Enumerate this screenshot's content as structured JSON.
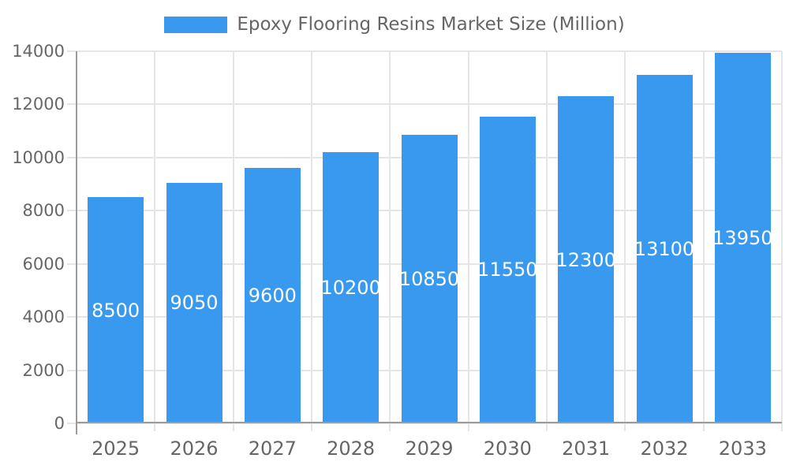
{
  "legend": {
    "label": "Epoxy Flooring Resins Market Size (Million)"
  },
  "colors": {
    "bar": "#3999EE",
    "grid": "#E5E5E5",
    "axis": "#9B9B9B",
    "tick_text": "#666666",
    "bar_label_text": "#FFFFFF",
    "background": "#FFFFFF"
  },
  "chart_data": {
    "type": "bar",
    "title": "",
    "xlabel": "",
    "ylabel": "",
    "categories": [
      "2025",
      "2026",
      "2027",
      "2028",
      "2029",
      "2030",
      "2031",
      "2032",
      "2033"
    ],
    "series": [
      {
        "name": "Epoxy Flooring Resins Market Size (Million)",
        "values": [
          8500,
          9050,
          9600,
          10200,
          10850,
          11550,
          12300,
          13100,
          13950
        ]
      }
    ],
    "bar_value_labels": [
      "8500",
      "9050",
      "9600",
      "10200",
      "10850",
      "11550",
      "12300",
      "13100",
      "13950"
    ],
    "bar_value_labels_position": "inside-center",
    "ylim": [
      0,
      14000
    ],
    "ytick_step": 2000,
    "yticks": [
      "0",
      "2000",
      "4000",
      "6000",
      "8000",
      "10000",
      "12000",
      "14000"
    ],
    "grid": "on",
    "legend_position": "top-center"
  }
}
